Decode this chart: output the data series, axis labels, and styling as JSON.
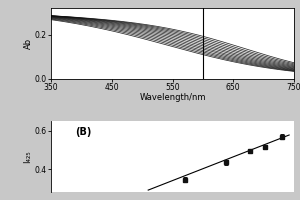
{
  "panel_A": {
    "xlabel": "Wavelength/nm",
    "ylabel": "Ab",
    "xlim": [
      350,
      750
    ],
    "ylim": [
      0.0,
      0.32
    ],
    "yticks": [
      0.0,
      0.2
    ],
    "xticks": [
      350,
      450,
      550,
      650,
      750
    ],
    "vline_x": 600,
    "num_curves": 13,
    "curve_color": "#111111",
    "background": "#ffffff"
  },
  "panel_B": {
    "label": "(B)",
    "ylabel": "I₄₂₅",
    "xlim": [
      0,
      10
    ],
    "ylim": [
      0.28,
      0.65
    ],
    "yticks": [
      0.4,
      0.6
    ],
    "data_x": [
      5.5,
      7.2,
      8.2,
      8.8,
      9.5
    ],
    "data_y": [
      0.345,
      0.435,
      0.495,
      0.515,
      0.57
    ],
    "yerr": [
      0.012,
      0.012,
      0.012,
      0.012,
      0.012
    ],
    "line_x": [
      4.0,
      9.8
    ],
    "line_y": [
      0.29,
      0.578
    ],
    "marker_color": "#111111",
    "background": "#ffffff"
  },
  "figure_bg": "#c8c8c8"
}
